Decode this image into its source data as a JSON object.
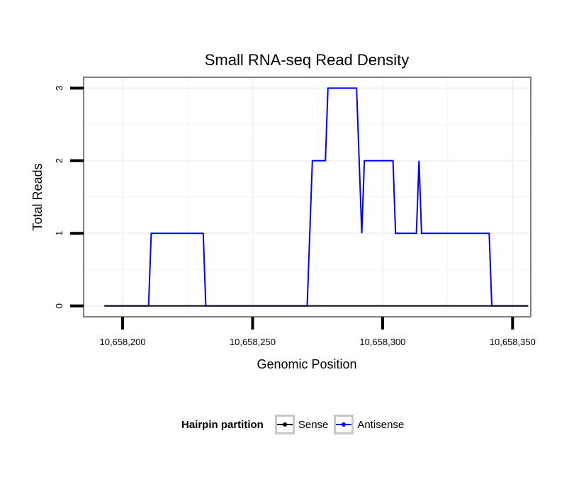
{
  "chart_data": {
    "type": "line",
    "title": "Small RNA-seq Read Density",
    "xlabel": "Genomic Position",
    "ylabel": "Total Reads",
    "xlim": [
      10658185,
      10658357
    ],
    "ylim": [
      -0.15,
      3.15
    ],
    "x_ticks": [
      10658200,
      10658250,
      10658300,
      10658350
    ],
    "x_tick_labels": [
      "10,658,200",
      "10,658,250",
      "10,658,300",
      "10,658,350"
    ],
    "y_ticks": [
      0,
      1,
      2,
      3
    ],
    "y_tick_labels": [
      "0",
      "1",
      "2",
      "3"
    ],
    "grid": true,
    "legend_position": "bottom",
    "legend_title": "Hairpin partition",
    "series": [
      {
        "name": "Sense",
        "color": "#000000",
        "points": [
          [
            10658193,
            0
          ],
          [
            10658356,
            0
          ]
        ]
      },
      {
        "name": "Antisense",
        "color": "#0000ff",
        "points": [
          [
            10658193,
            0
          ],
          [
            10658210,
            0
          ],
          [
            10658211,
            1
          ],
          [
            10658231,
            1
          ],
          [
            10658232,
            0
          ],
          [
            10658271,
            0
          ],
          [
            10658273,
            2
          ],
          [
            10658278,
            2
          ],
          [
            10658279,
            3
          ],
          [
            10658290,
            3
          ],
          [
            10658292,
            1
          ],
          [
            10658293,
            2
          ],
          [
            10658304,
            2
          ],
          [
            10658305,
            1
          ],
          [
            10658313,
            1
          ],
          [
            10658314,
            2
          ],
          [
            10658315,
            1
          ],
          [
            10658341,
            1
          ],
          [
            10658342,
            0
          ],
          [
            10658356,
            0
          ]
        ]
      }
    ]
  }
}
